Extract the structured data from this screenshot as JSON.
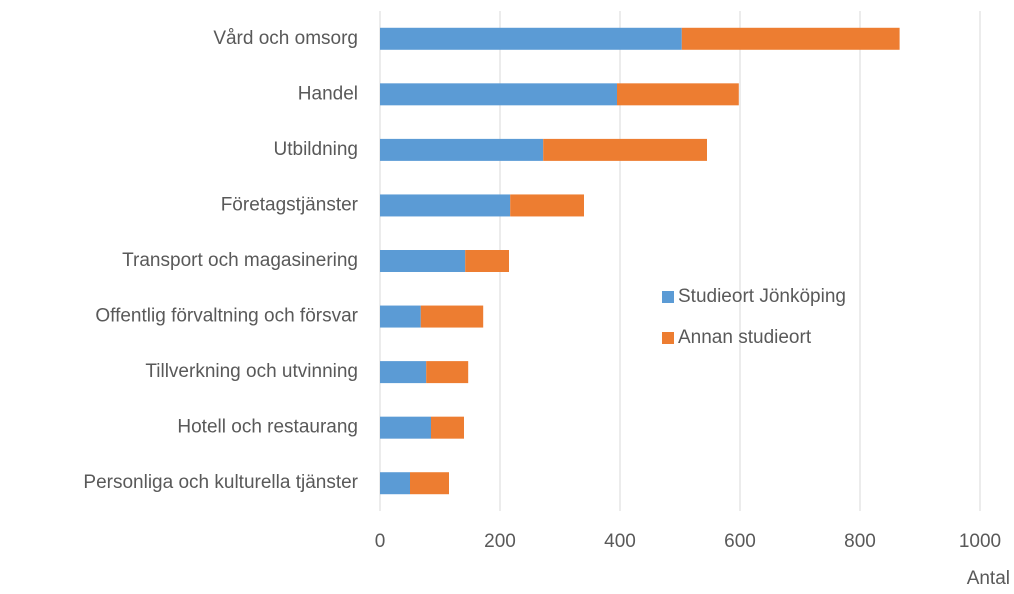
{
  "chart_data": {
    "type": "stacked_bar_horizontal",
    "categories": [
      "Vård och omsorg",
      "Handel",
      "Utbildning",
      "Företagstjänster",
      "Transport och magasinering",
      "Offentlig förvaltning och försvar",
      "Tillverkning och utvinning",
      "Hotell och restaurang",
      "Personliga och kulturella tjänster"
    ],
    "series": [
      {
        "name": "Studieort Jönköping",
        "color": "#5b9bd5",
        "values": [
          503,
          395,
          272,
          217,
          142,
          68,
          77,
          85,
          50
        ]
      },
      {
        "name": "Annan studieort",
        "color": "#ed7d31",
        "values": [
          363,
          203,
          273,
          123,
          73,
          104,
          70,
          55,
          65
        ]
      }
    ],
    "xlabel": "Antal",
    "xlim": [
      0,
      1000
    ],
    "xticks": [
      0,
      200,
      400,
      600,
      800,
      1000
    ],
    "grid": true,
    "legend": "center-right"
  }
}
